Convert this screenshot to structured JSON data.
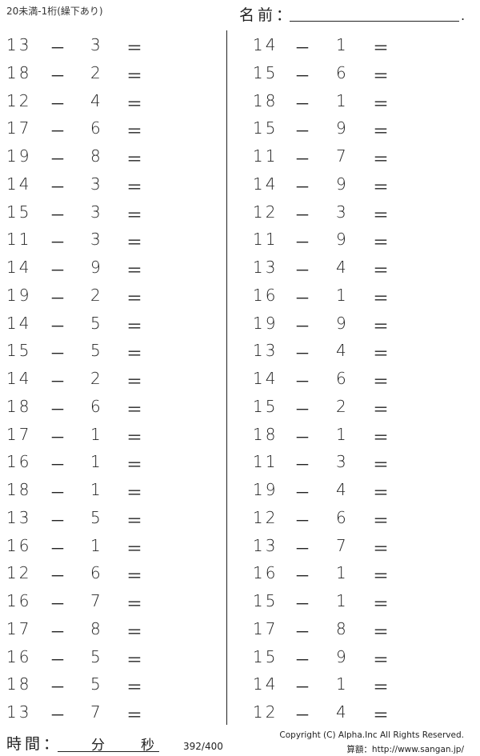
{
  "header": {
    "title": "20未満-1桁(繰下あり)",
    "name_label": "名前：",
    "name_end": "."
  },
  "left": [
    [
      "13",
      "3"
    ],
    [
      "18",
      "2"
    ],
    [
      "12",
      "4"
    ],
    [
      "17",
      "6"
    ],
    [
      "19",
      "8"
    ],
    [
      "14",
      "3"
    ],
    [
      "15",
      "3"
    ],
    [
      "11",
      "3"
    ],
    [
      "14",
      "9"
    ],
    [
      "19",
      "2"
    ],
    [
      "14",
      "5"
    ],
    [
      "15",
      "5"
    ],
    [
      "14",
      "2"
    ],
    [
      "18",
      "6"
    ],
    [
      "17",
      "1"
    ],
    [
      "16",
      "1"
    ],
    [
      "18",
      "1"
    ],
    [
      "13",
      "5"
    ],
    [
      "16",
      "1"
    ],
    [
      "12",
      "6"
    ],
    [
      "16",
      "7"
    ],
    [
      "17",
      "8"
    ],
    [
      "16",
      "5"
    ],
    [
      "18",
      "5"
    ],
    [
      "13",
      "7"
    ]
  ],
  "right": [
    [
      "14",
      "1"
    ],
    [
      "15",
      "6"
    ],
    [
      "18",
      "1"
    ],
    [
      "15",
      "9"
    ],
    [
      "11",
      "7"
    ],
    [
      "14",
      "9"
    ],
    [
      "12",
      "3"
    ],
    [
      "11",
      "9"
    ],
    [
      "13",
      "4"
    ],
    [
      "16",
      "1"
    ],
    [
      "19",
      "9"
    ],
    [
      "13",
      "4"
    ],
    [
      "14",
      "6"
    ],
    [
      "15",
      "2"
    ],
    [
      "18",
      "1"
    ],
    [
      "11",
      "3"
    ],
    [
      "19",
      "4"
    ],
    [
      "12",
      "6"
    ],
    [
      "13",
      "7"
    ],
    [
      "16",
      "1"
    ],
    [
      "15",
      "1"
    ],
    [
      "17",
      "8"
    ],
    [
      "15",
      "9"
    ],
    [
      "14",
      "1"
    ],
    [
      "12",
      "4"
    ]
  ],
  "operators": {
    "minus": "－",
    "equals": "＝"
  },
  "footer": {
    "time_label": "時間：",
    "minutes": "分",
    "seconds": "秒",
    "page": "392/400",
    "copyright": "Copyright (C) Alpha.Inc All Rights Reserved.",
    "site": "算額：http://www.sangan.jp/"
  }
}
